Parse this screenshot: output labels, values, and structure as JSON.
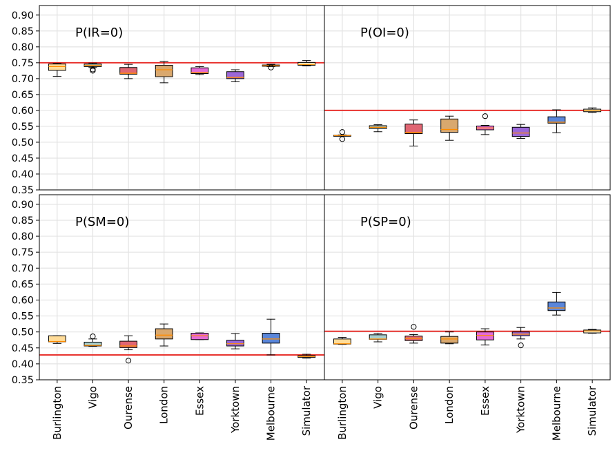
{
  "chart_data": {
    "type": "box",
    "categories": [
      "Burlington",
      "Vigo",
      "Ourense",
      "London",
      "Essex",
      "Yorktown",
      "Melbourne",
      "Simulator"
    ],
    "ylim": [
      0.35,
      0.93
    ],
    "yticks": [
      "0.35",
      "0.40",
      "0.45",
      "0.50",
      "0.55",
      "0.60",
      "0.65",
      "0.70",
      "0.75",
      "0.80",
      "0.85",
      "0.90"
    ],
    "grid": true,
    "colors": [
      "#ffdc99",
      "#a7d0cf",
      "#e06673",
      "#d9a86e",
      "#e46ad6",
      "#9b67d8",
      "#5a86da",
      "#fff6dd"
    ],
    "median_color": "#ff8c00",
    "reference_color": "#e8322e",
    "panels": [
      {
        "label": "P(IR=0)",
        "reference": 0.75,
        "boxes": [
          {
            "wlo": 0.707,
            "q1": 0.726,
            "med": 0.738,
            "q3": 0.746,
            "whi": 0.748,
            "outliers": []
          },
          {
            "wlo": 0.735,
            "q1": 0.738,
            "med": 0.742,
            "q3": 0.746,
            "whi": 0.749,
            "outliers": [
              0.729,
              0.725
            ]
          },
          {
            "wlo": 0.7,
            "q1": 0.714,
            "med": 0.717,
            "q3": 0.735,
            "whi": 0.745,
            "outliers": []
          },
          {
            "wlo": 0.687,
            "q1": 0.706,
            "med": 0.728,
            "q3": 0.742,
            "whi": 0.754,
            "outliers": []
          },
          {
            "wlo": 0.713,
            "q1": 0.716,
            "med": 0.72,
            "q3": 0.734,
            "whi": 0.738,
            "outliers": []
          },
          {
            "wlo": 0.69,
            "q1": 0.7,
            "med": 0.704,
            "q3": 0.722,
            "whi": 0.728,
            "outliers": []
          },
          {
            "wlo": 0.738,
            "q1": 0.739,
            "med": 0.741,
            "q3": 0.743,
            "whi": 0.745,
            "outliers": [
              0.735
            ]
          },
          {
            "wlo": 0.74,
            "q1": 0.742,
            "med": 0.745,
            "q3": 0.751,
            "whi": 0.757,
            "outliers": []
          }
        ]
      },
      {
        "label": "P(OI=0)",
        "reference": 0.6,
        "boxes": [
          {
            "wlo": 0.52,
            "q1": 0.52,
            "med": 0.521,
            "q3": 0.522,
            "whi": 0.523,
            "outliers": [
              0.532,
              0.51
            ]
          },
          {
            "wlo": 0.533,
            "q1": 0.543,
            "med": 0.547,
            "q3": 0.552,
            "whi": 0.555,
            "outliers": []
          },
          {
            "wlo": 0.488,
            "q1": 0.527,
            "med": 0.531,
            "q3": 0.557,
            "whi": 0.57,
            "outliers": []
          },
          {
            "wlo": 0.506,
            "q1": 0.531,
            "med": 0.54,
            "q3": 0.573,
            "whi": 0.582,
            "outliers": []
          },
          {
            "wlo": 0.524,
            "q1": 0.539,
            "med": 0.545,
            "q3": 0.551,
            "whi": 0.553,
            "outliers": [
              0.582
            ]
          },
          {
            "wlo": 0.512,
            "q1": 0.518,
            "med": 0.529,
            "q3": 0.547,
            "whi": 0.556,
            "outliers": []
          },
          {
            "wlo": 0.53,
            "q1": 0.56,
            "med": 0.563,
            "q3": 0.58,
            "whi": 0.602,
            "outliers": []
          },
          {
            "wlo": 0.594,
            "q1": 0.596,
            "med": 0.599,
            "q3": 0.604,
            "whi": 0.608,
            "outliers": []
          }
        ]
      },
      {
        "label": "P(SM=0)",
        "reference": 0.428,
        "boxes": [
          {
            "wlo": 0.464,
            "q1": 0.469,
            "med": 0.47,
            "q3": 0.488,
            "whi": 0.488,
            "outliers": []
          },
          {
            "wlo": 0.455,
            "q1": 0.456,
            "med": 0.458,
            "q3": 0.468,
            "whi": 0.478,
            "outliers": [
              0.486
            ]
          },
          {
            "wlo": 0.444,
            "q1": 0.451,
            "med": 0.456,
            "q3": 0.471,
            "whi": 0.488,
            "outliers": [
              0.41
            ]
          },
          {
            "wlo": 0.456,
            "q1": 0.478,
            "med": 0.49,
            "q3": 0.51,
            "whi": 0.525,
            "outliers": []
          },
          {
            "wlo": 0.476,
            "q1": 0.476,
            "med": 0.488,
            "q3": 0.496,
            "whi": 0.497,
            "outliers": []
          },
          {
            "wlo": 0.447,
            "q1": 0.456,
            "med": 0.463,
            "q3": 0.474,
            "whi": 0.495,
            "outliers": []
          },
          {
            "wlo": 0.428,
            "q1": 0.465,
            "med": 0.478,
            "q3": 0.496,
            "whi": 0.54,
            "outliers": []
          },
          {
            "wlo": 0.418,
            "q1": 0.42,
            "med": 0.423,
            "q3": 0.426,
            "whi": 0.43,
            "outliers": []
          }
        ]
      },
      {
        "label": "P(SP=0)",
        "reference": 0.502,
        "boxes": [
          {
            "wlo": 0.461,
            "q1": 0.462,
            "med": 0.463,
            "q3": 0.478,
            "whi": 0.483,
            "outliers": []
          },
          {
            "wlo": 0.469,
            "q1": 0.477,
            "med": 0.478,
            "q3": 0.491,
            "whi": 0.495,
            "outliers": []
          },
          {
            "wlo": 0.465,
            "q1": 0.473,
            "med": 0.48,
            "q3": 0.487,
            "whi": 0.492,
            "outliers": [
              0.516
            ]
          },
          {
            "wlo": 0.463,
            "q1": 0.465,
            "med": 0.478,
            "q3": 0.486,
            "whi": 0.5,
            "outliers": []
          },
          {
            "wlo": 0.459,
            "q1": 0.475,
            "med": 0.489,
            "q3": 0.5,
            "whi": 0.51,
            "outliers": []
          },
          {
            "wlo": 0.478,
            "q1": 0.488,
            "med": 0.493,
            "q3": 0.5,
            "whi": 0.514,
            "outliers": [
              0.458
            ]
          },
          {
            "wlo": 0.553,
            "q1": 0.567,
            "med": 0.575,
            "q3": 0.594,
            "whi": 0.624,
            "outliers": []
          },
          {
            "wlo": 0.496,
            "q1": 0.497,
            "med": 0.503,
            "q3": 0.506,
            "whi": 0.508,
            "outliers": []
          }
        ]
      }
    ]
  }
}
